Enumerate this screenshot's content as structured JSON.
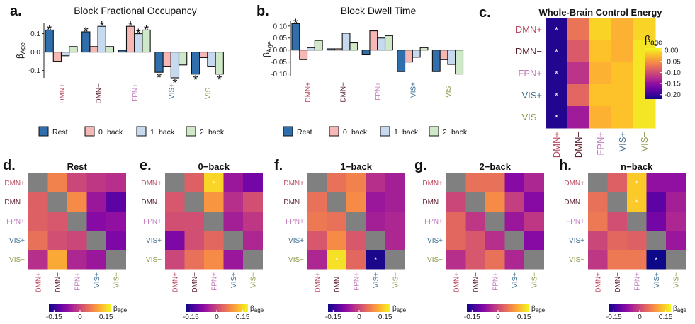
{
  "colors": {
    "DMN+": "#b9485f",
    "DMN−": "#5a1f2c",
    "FPN+": "#c27bbd",
    "VIS+": "#3f6f8f",
    "VIS−": "#8a9a4a",
    "Rest": "#2f6fad",
    "0−back": "#f6b8b4",
    "1−back": "#c6d9ef",
    "2−back": "#cfe9c8",
    "nan": "#808080"
  },
  "chart_data": [
    {
      "panel": "a.",
      "type": "bar",
      "title": "Block Fractional Occupancy",
      "ylabel_main": "β",
      "ylabel_sub": "Age",
      "ylim": [
        -0.14,
        0.16
      ],
      "yticks": [
        "0.1",
        "0.0",
        "-0.1"
      ],
      "ytick_values": [
        0.1,
        0.0,
        -0.1
      ],
      "categories": [
        "DMN+",
        "DMN−",
        "FPN+",
        "VIS+",
        "VIS−"
      ],
      "series": [
        {
          "name": "Rest",
          "values": [
            0.12,
            0.11,
            0.01,
            -0.11,
            -0.12
          ],
          "stars": [
            true,
            true,
            false,
            true,
            true
          ]
        },
        {
          "name": "0−back",
          "values": [
            -0.05,
            0.03,
            0.14,
            -0.08,
            -0.03
          ],
          "stars": [
            false,
            false,
            true,
            false,
            false
          ]
        },
        {
          "name": "1−back",
          "values": [
            -0.02,
            0.14,
            0.1,
            -0.14,
            -0.08
          ],
          "stars": [
            false,
            true,
            true,
            true,
            false
          ]
        },
        {
          "name": "2−back",
          "values": [
            0.03,
            0.03,
            0.12,
            -0.07,
            -0.12
          ],
          "stars": [
            false,
            false,
            true,
            false,
            true
          ]
        }
      ],
      "star": "*"
    },
    {
      "panel": "b.",
      "type": "bar",
      "title": "Block Dwell Time",
      "ylabel_main": "β",
      "ylabel_sub": "Age",
      "ylim": [
        -0.11,
        0.12
      ],
      "yticks": [
        "0.10",
        "0.05",
        "0.00",
        "-0.05",
        "-0.10"
      ],
      "ytick_values": [
        0.1,
        0.05,
        0.0,
        -0.05,
        -0.1
      ],
      "categories": [
        "DMN+",
        "DMN−",
        "FPN+",
        "VIS+",
        "VIS−"
      ],
      "series": [
        {
          "name": "Rest",
          "values": [
            0.11,
            0.005,
            -0.02,
            -0.09,
            -0.09
          ],
          "stars": [
            true,
            false,
            false,
            false,
            false
          ]
        },
        {
          "name": "0−back",
          "values": [
            -0.04,
            0.005,
            0.08,
            -0.05,
            -0.04
          ],
          "stars": [
            false,
            false,
            false,
            false,
            false
          ]
        },
        {
          "name": "1−back",
          "values": [
            0.01,
            0.07,
            0.05,
            -0.03,
            -0.06
          ],
          "stars": [
            false,
            false,
            false,
            false,
            false
          ]
        },
        {
          "name": "2−back",
          "values": [
            0.04,
            0.03,
            0.06,
            0.01,
            -0.1
          ],
          "stars": [
            false,
            false,
            false,
            false,
            false
          ]
        }
      ],
      "star": "*",
      "legend": [
        "Rest",
        "0−back",
        "1−back",
        "2−back"
      ]
    },
    {
      "panel": "c.",
      "type": "heatmap",
      "title": "Whole-Brain Control Energy",
      "rows": [
        "DMN+",
        "DMN−",
        "FPN+",
        "VIS+",
        "VIS−"
      ],
      "cols": [
        "DMN+",
        "DMN−",
        "FPN+",
        "VIS+",
        "VIS−"
      ],
      "values": [
        [
          -0.21,
          -0.07,
          -0.01,
          -0.03,
          -0.01
        ],
        [
          -0.21,
          -0.09,
          -0.02,
          -0.03,
          0.0
        ],
        [
          -0.21,
          -0.12,
          -0.03,
          -0.02,
          0.0
        ],
        [
          -0.21,
          -0.08,
          -0.02,
          -0.02,
          0.0
        ],
        [
          -0.21,
          -0.14,
          -0.03,
          -0.02,
          0.0
        ]
      ],
      "stars": [
        [
          true,
          false,
          false,
          false,
          false
        ],
        [
          true,
          false,
          false,
          false,
          false
        ],
        [
          true,
          false,
          false,
          false,
          false
        ],
        [
          true,
          false,
          false,
          false,
          false
        ],
        [
          true,
          false,
          false,
          false,
          false
        ]
      ],
      "legend_title_main": "β",
      "legend_title_sub": "age",
      "legend_ticks": [
        "0.00",
        "-0.05",
        "-0.10",
        "-0.15",
        "-0.20"
      ],
      "legend_tick_values": [
        0.0,
        -0.05,
        -0.1,
        -0.15,
        -0.2
      ],
      "range": [
        -0.22,
        0.01
      ]
    },
    {
      "panel": "d.",
      "type": "heatmap",
      "title": "Rest",
      "rows": [
        "DMN+",
        "DMN−",
        "FPN+",
        "VIS+",
        "VIS−"
      ],
      "cols": [
        "DMN+",
        "DMN−",
        "FPN+",
        "VIS+",
        "VIS−"
      ],
      "values": [
        [
          null,
          0.07,
          0.0,
          -0.02,
          -0.03
        ],
        [
          0.03,
          null,
          0.08,
          -0.06,
          -0.12
        ],
        [
          0.03,
          0.02,
          null,
          -0.08,
          -0.07
        ],
        [
          0.05,
          0.01,
          0.0,
          null,
          -0.09
        ],
        [
          -0.03,
          0.11,
          -0.04,
          -0.06,
          null
        ]
      ],
      "stars": [],
      "range": [
        -0.18,
        0.18
      ]
    },
    {
      "panel": "e.",
      "type": "heatmap",
      "title": "0−back",
      "rows": [
        "DMN+",
        "DMN−",
        "FPN+",
        "VIS+",
        "VIS−"
      ],
      "cols": [
        "DMN+",
        "DMN−",
        "FPN+",
        "VIS+",
        "VIS−"
      ],
      "values": [
        [
          null,
          0.03,
          0.15,
          -0.06,
          -0.1
        ],
        [
          0.02,
          null,
          0.09,
          -0.03,
          0.01
        ],
        [
          0.01,
          0.01,
          null,
          -0.05,
          -0.02
        ],
        [
          -0.09,
          0.01,
          0.04,
          null,
          -0.04
        ],
        [
          0.0,
          0.05,
          0.08,
          -0.06,
          null
        ]
      ],
      "stars": [
        [
          0,
          2
        ]
      ],
      "range": [
        -0.18,
        0.18
      ]
    },
    {
      "panel": "f.",
      "type": "heatmap",
      "title": "1−back",
      "rows": [
        "DMN+",
        "DMN−",
        "FPN+",
        "VIS+",
        "VIS−"
      ],
      "cols": [
        "DMN+",
        "DMN−",
        "FPN+",
        "VIS+",
        "VIS−"
      ],
      "values": [
        [
          null,
          0.05,
          0.07,
          -0.03,
          -0.05
        ],
        [
          0.05,
          null,
          0.08,
          -0.06,
          -0.05
        ],
        [
          0.06,
          0.05,
          null,
          -0.05,
          -0.04
        ],
        [
          0.02,
          0.08,
          0.02,
          null,
          -0.04
        ],
        [
          -0.04,
          0.16,
          0.04,
          -0.17,
          null
        ]
      ],
      "stars": [
        [
          4,
          1
        ],
        [
          4,
          3
        ]
      ],
      "range": [
        -0.18,
        0.18
      ]
    },
    {
      "panel": "g.",
      "type": "heatmap",
      "title": "2−back",
      "rows": [
        "DMN+",
        "DMN−",
        "FPN+",
        "VIS+",
        "VIS−"
      ],
      "cols": [
        "DMN+",
        "DMN−",
        "FPN+",
        "VIS+",
        "VIS−"
      ],
      "values": [
        [
          null,
          0.05,
          0.05,
          -0.08,
          -0.04
        ],
        [
          0.0,
          null,
          0.08,
          -0.01,
          -0.08
        ],
        [
          0.04,
          -0.02,
          null,
          -0.06,
          -0.02
        ],
        [
          0.04,
          0.02,
          -0.03,
          null,
          -0.08
        ],
        [
          -0.03,
          0.02,
          0.05,
          -0.04,
          null
        ]
      ],
      "stars": [],
      "range": [
        -0.18,
        0.18
      ]
    },
    {
      "panel": "h.",
      "type": "heatmap",
      "title": "n−back",
      "rows": [
        "DMN+",
        "DMN−",
        "FPN+",
        "VIS+",
        "VIS−"
      ],
      "cols": [
        "DMN+",
        "DMN−",
        "FPN+",
        "VIS+",
        "VIS−"
      ],
      "values": [
        [
          null,
          0.03,
          0.14,
          -0.07,
          -0.07
        ],
        [
          0.05,
          null,
          0.14,
          -0.12,
          -0.05
        ],
        [
          0.06,
          0.01,
          null,
          -0.1,
          -0.04
        ],
        [
          0.0,
          0.04,
          0.03,
          null,
          -0.06
        ],
        [
          -0.02,
          0.06,
          0.06,
          -0.18,
          null
        ]
      ],
      "stars": [
        [
          0,
          2
        ],
        [
          1,
          2
        ],
        [
          4,
          3
        ]
      ],
      "range": [
        -0.18,
        0.18
      ]
    }
  ],
  "shared_colorbar": {
    "title_main": "β",
    "title_sub": "age",
    "ticks": [
      "-0.15",
      "0",
      "0.15"
    ],
    "tick_values": [
      -0.15,
      0,
      0.15
    ]
  }
}
